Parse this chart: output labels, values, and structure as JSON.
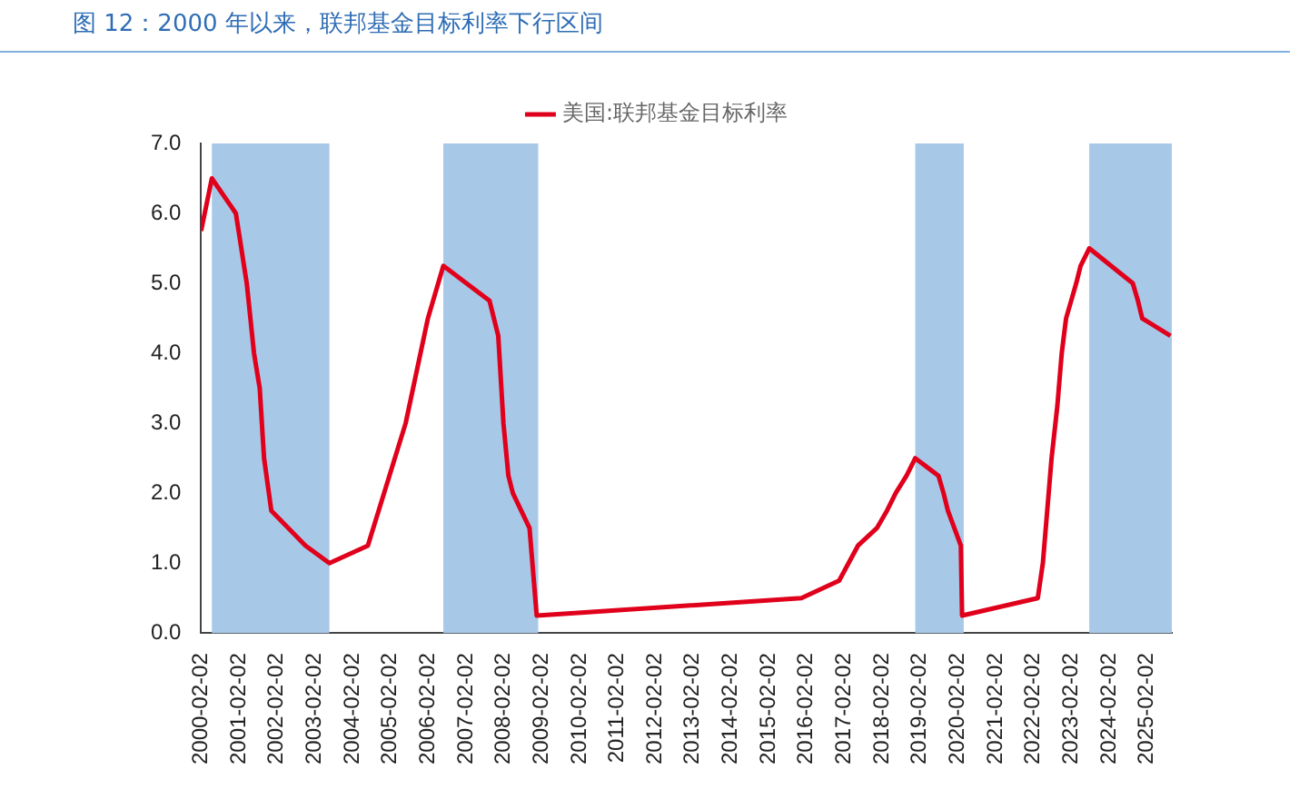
{
  "chart_data": {
    "type": "line",
    "title": "图 12：2000 年以来，联邦基金目标利率下行区间",
    "x": [
      "2000-02-02",
      "2000-05-16",
      "2001-01-03",
      "2001-04-18",
      "2001-06-27",
      "2001-08-21",
      "2001-10-02",
      "2001-12-11",
      "2002-11-06",
      "2003-06-25",
      "2004-06-30",
      "2005-06-30",
      "2006-01-31",
      "2006-06-29",
      "2007-09-18",
      "2007-12-11",
      "2008-01-30",
      "2008-03-18",
      "2008-04-30",
      "2008-10-08",
      "2008-12-16",
      "2015-12-16",
      "2016-12-14",
      "2017-03-15",
      "2017-06-14",
      "2017-12-13",
      "2018-03-21",
      "2018-06-13",
      "2018-09-26",
      "2018-12-19",
      "2019-07-31",
      "2019-09-18",
      "2019-10-30",
      "2020-03-03",
      "2020-03-15",
      "2022-03-16",
      "2022-05-04",
      "2022-06-15",
      "2022-07-27",
      "2022-09-21",
      "2022-11-02",
      "2022-12-14",
      "2023-02-01",
      "2023-03-22",
      "2023-05-03",
      "2023-07-26",
      "2024-09-18",
      "2024-11-07",
      "2024-12-18",
      "2025-09-17"
    ],
    "series": [
      {
        "name": "美国:联邦基金目标利率",
        "color": "#e0001b",
        "values": [
          5.75,
          6.5,
          6.0,
          5.0,
          4.0,
          3.5,
          2.5,
          1.75,
          1.25,
          1.0,
          1.25,
          3.0,
          4.5,
          5.25,
          4.75,
          4.25,
          3.0,
          2.25,
          2.0,
          1.5,
          0.25,
          0.5,
          0.75,
          1.0,
          1.25,
          1.5,
          1.75,
          2.0,
          2.25,
          2.5,
          2.25,
          2.0,
          1.75,
          1.25,
          0.25,
          0.5,
          1.0,
          1.75,
          2.5,
          3.25,
          4.0,
          4.5,
          4.75,
          5.0,
          5.25,
          5.5,
          5.0,
          4.75,
          4.5,
          4.25
        ]
      }
    ],
    "xlim": [
      "2000-02-02",
      "2025-09-30"
    ],
    "xticks": [
      "2000-02-02",
      "2001-02-02",
      "2002-02-02",
      "2003-02-02",
      "2004-02-02",
      "2005-02-02",
      "2006-02-02",
      "2007-02-02",
      "2008-02-02",
      "2009-02-02",
      "2010-02-02",
      "2011-02-02",
      "2012-02-02",
      "2013-02-02",
      "2014-02-02",
      "2015-02-02",
      "2016-02-02",
      "2017-02-02",
      "2018-02-02",
      "2019-02-02",
      "2020-02-02",
      "2021-02-02",
      "2022-02-02",
      "2023-02-02",
      "2024-02-02",
      "2025-02-02"
    ],
    "ylim": [
      0,
      7
    ],
    "yticks": [
      {
        "value": 0,
        "label": "0.0"
      },
      {
        "value": 1,
        "label": "1.0"
      },
      {
        "value": 2,
        "label": "2.0"
      },
      {
        "value": 3,
        "label": "3.0"
      },
      {
        "value": 4,
        "label": "4.0"
      },
      {
        "value": 5,
        "label": "5.0"
      },
      {
        "value": 6,
        "label": "6.0"
      },
      {
        "value": 7,
        "label": "7.0"
      }
    ],
    "bands": [
      {
        "axis": "x",
        "from": "2000-05-16",
        "to": "2003-06-25",
        "color": "#a8c8e8"
      },
      {
        "axis": "x",
        "from": "2006-06-29",
        "to": "2008-12-31",
        "color": "#a8c8e8"
      },
      {
        "axis": "x",
        "from": "2018-12-19",
        "to": "2020-03-31",
        "color": "#a8c8e8"
      },
      {
        "axis": "x",
        "from": "2023-07-26",
        "to": "2025-09-30",
        "color": "#a8c8e8"
      }
    ],
    "grid": false,
    "legend": "top",
    "marker": "none",
    "line_style": "solid"
  }
}
